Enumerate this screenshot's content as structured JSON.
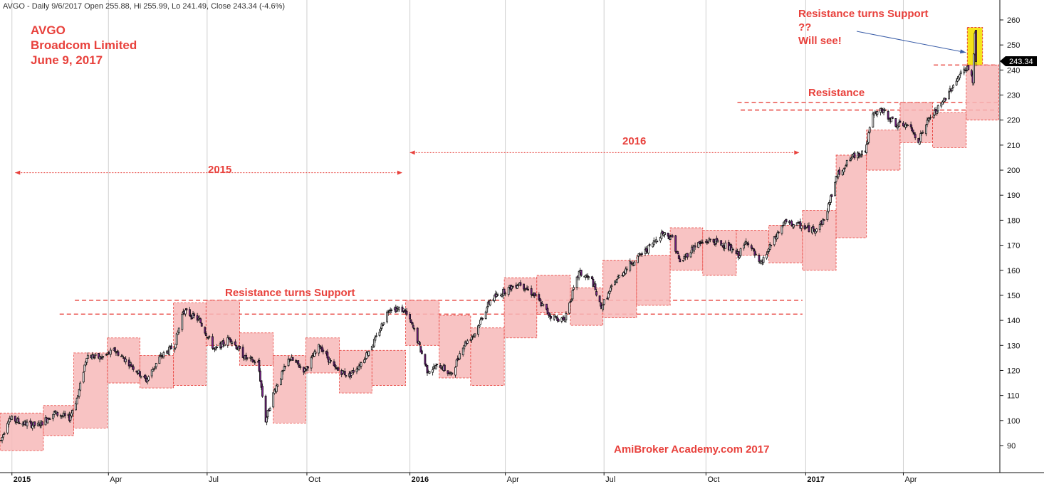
{
  "header_text": "AVGO - Daily 9/6/2017 Open 255.88, Hi 255.99, Lo 241.49, Close 243.34 (-4.6%)",
  "title": {
    "line1": "AVGO",
    "line2": "Broadcom Limited",
    "line3": "June 9, 2017"
  },
  "annotations": {
    "resistance_support_top": "Resistance turns Support",
    "question": "??",
    "will_see": "Will see!",
    "resistance": "Resistance",
    "year_2016": "2016",
    "year_2015": "2015",
    "resistance_support_mid": "Resistance turns Support",
    "watermark": "AmiBroker Academy.com  2017"
  },
  "price_label": "243.34",
  "colors": {
    "annotation": "#e8413c",
    "range_box": "#f7b9b9",
    "candle_up": "#ffffff",
    "candle_down": "#7a1f8a",
    "highlight_box": "#f4e31a",
    "price_tag": "#000000",
    "arrow": "#3b5ea8"
  },
  "chart_data": {
    "type": "candlestick",
    "symbol": "AVGO",
    "timeframe": "Daily",
    "ylim": [
      85,
      262
    ],
    "xlim": [
      "2014-12-22",
      "2017-07-01"
    ],
    "yticks": [
      90,
      100,
      110,
      120,
      130,
      140,
      150,
      160,
      170,
      180,
      190,
      200,
      210,
      220,
      230,
      240,
      250,
      260
    ],
    "xticks": [
      {
        "label": "2015",
        "date": "2015-01-02",
        "bold": true
      },
      {
        "label": "Apr",
        "date": "2015-04-01",
        "bold": false
      },
      {
        "label": "Jul",
        "date": "2015-07-01",
        "bold": false
      },
      {
        "label": "Oct",
        "date": "2015-10-01",
        "bold": false
      },
      {
        "label": "2016",
        "date": "2016-01-04",
        "bold": true
      },
      {
        "label": "Apr",
        "date": "2016-04-01",
        "bold": false
      },
      {
        "label": "Jul",
        "date": "2016-07-01",
        "bold": false
      },
      {
        "label": "Oct",
        "date": "2016-10-03",
        "bold": false
      },
      {
        "label": "2017",
        "date": "2017-01-03",
        "bold": true
      },
      {
        "label": "Apr",
        "date": "2017-04-03",
        "bold": false
      }
    ],
    "last": {
      "open": 255.88,
      "high": 255.99,
      "low": 241.49,
      "close": 243.34
    },
    "price_path": [
      [
        "2014-12-23",
        92
      ],
      [
        "2014-12-30",
        101
      ],
      [
        "2015-01-12",
        99
      ],
      [
        "2015-01-26",
        98
      ],
      [
        "2015-02-10",
        103
      ],
      [
        "2015-02-24",
        101
      ],
      [
        "2015-03-04",
        110
      ],
      [
        "2015-03-12",
        126
      ],
      [
        "2015-03-25",
        125
      ],
      [
        "2015-04-07",
        128
      ],
      [
        "2015-04-20",
        123
      ],
      [
        "2015-05-06",
        116
      ],
      [
        "2015-05-18",
        125
      ],
      [
        "2015-06-01",
        130
      ],
      [
        "2015-06-09",
        144
      ],
      [
        "2015-06-24",
        140
      ],
      [
        "2015-07-08",
        128
      ],
      [
        "2015-07-22",
        133
      ],
      [
        "2015-08-05",
        125
      ],
      [
        "2015-08-17",
        123
      ],
      [
        "2015-08-24",
        100
      ],
      [
        "2015-09-01",
        112
      ],
      [
        "2015-09-15",
        125
      ],
      [
        "2015-09-29",
        120
      ],
      [
        "2015-10-13",
        130
      ],
      [
        "2015-10-26",
        121
      ],
      [
        "2015-11-09",
        118
      ],
      [
        "2015-11-20",
        123
      ],
      [
        "2015-12-04",
        133
      ],
      [
        "2015-12-16",
        145
      ],
      [
        "2015-12-30",
        144
      ],
      [
        "2016-01-08",
        136
      ],
      [
        "2016-01-20",
        120
      ],
      [
        "2016-02-01",
        122
      ],
      [
        "2016-02-11",
        118
      ],
      [
        "2016-02-22",
        130
      ],
      [
        "2016-03-04",
        135
      ],
      [
        "2016-03-18",
        148
      ],
      [
        "2016-04-01",
        152
      ],
      [
        "2016-04-14",
        155
      ],
      [
        "2016-04-28",
        150
      ],
      [
        "2016-05-12",
        142
      ],
      [
        "2016-05-25",
        140
      ],
      [
        "2016-06-08",
        159
      ],
      [
        "2016-06-20",
        156
      ],
      [
        "2016-06-28",
        145
      ],
      [
        "2016-07-12",
        156
      ],
      [
        "2016-07-26",
        163
      ],
      [
        "2016-08-09",
        168
      ],
      [
        "2016-08-24",
        175
      ],
      [
        "2016-09-02",
        173
      ],
      [
        "2016-09-09",
        163
      ],
      [
        "2016-09-23",
        170
      ],
      [
        "2016-10-07",
        172
      ],
      [
        "2016-10-21",
        170
      ],
      [
        "2016-11-02",
        166
      ],
      [
        "2016-11-10",
        172
      ],
      [
        "2016-11-22",
        162
      ],
      [
        "2016-12-02",
        170
      ],
      [
        "2016-12-14",
        179
      ],
      [
        "2016-12-28",
        178
      ],
      [
        "2017-01-10",
        176
      ],
      [
        "2017-01-20",
        180
      ],
      [
        "2017-02-01",
        198
      ],
      [
        "2017-02-14",
        205
      ],
      [
        "2017-02-27",
        208
      ],
      [
        "2017-03-06",
        222
      ],
      [
        "2017-03-14",
        224
      ],
      [
        "2017-03-28",
        218
      ],
      [
        "2017-04-07",
        218
      ],
      [
        "2017-04-17",
        212
      ],
      [
        "2017-04-26",
        220
      ],
      [
        "2017-05-08",
        226
      ],
      [
        "2017-05-16",
        232
      ],
      [
        "2017-05-25",
        238
      ],
      [
        "2017-06-01",
        241
      ],
      [
        "2017-06-06",
        236
      ],
      [
        "2017-06-07",
        246
      ],
      [
        "2017-06-08",
        254
      ],
      [
        "2017-06-09",
        243.34
      ]
    ],
    "range_boxes": [
      {
        "start": "2014-12-22",
        "end": "2015-01-31",
        "low": 88,
        "high": 103
      },
      {
        "start": "2015-01-31",
        "end": "2015-02-28",
        "low": 94,
        "high": 106
      },
      {
        "start": "2015-02-28",
        "end": "2015-03-31",
        "low": 97,
        "high": 127
      },
      {
        "start": "2015-03-31",
        "end": "2015-04-30",
        "low": 115,
        "high": 133
      },
      {
        "start": "2015-04-30",
        "end": "2015-05-31",
        "low": 113,
        "high": 126
      },
      {
        "start": "2015-05-31",
        "end": "2015-06-30",
        "low": 114,
        "high": 147
      },
      {
        "start": "2015-06-30",
        "end": "2015-07-31",
        "low": 130,
        "high": 148
      },
      {
        "start": "2015-07-31",
        "end": "2015-08-31",
        "low": 122,
        "high": 135
      },
      {
        "start": "2015-08-31",
        "end": "2015-09-30",
        "low": 99,
        "high": 126
      },
      {
        "start": "2015-09-30",
        "end": "2015-10-31",
        "low": 119,
        "high": 133
      },
      {
        "start": "2015-10-31",
        "end": "2015-11-30",
        "low": 111,
        "high": 128
      },
      {
        "start": "2015-11-30",
        "end": "2015-12-31",
        "low": 114,
        "high": 128
      },
      {
        "start": "2015-12-31",
        "end": "2016-01-31",
        "low": 130,
        "high": 148
      },
      {
        "start": "2016-01-31",
        "end": "2016-02-29",
        "low": 117,
        "high": 142
      },
      {
        "start": "2016-02-29",
        "end": "2016-03-31",
        "low": 114,
        "high": 137
      },
      {
        "start": "2016-03-31",
        "end": "2016-04-30",
        "low": 133,
        "high": 157
      },
      {
        "start": "2016-04-30",
        "end": "2016-05-31",
        "low": 143,
        "high": 158
      },
      {
        "start": "2016-05-31",
        "end": "2016-06-30",
        "low": 138,
        "high": 153
      },
      {
        "start": "2016-06-30",
        "end": "2016-07-31",
        "low": 141,
        "high": 164
      },
      {
        "start": "2016-07-31",
        "end": "2016-08-31",
        "low": 146,
        "high": 166
      },
      {
        "start": "2016-08-31",
        "end": "2016-09-30",
        "low": 160,
        "high": 177
      },
      {
        "start": "2016-09-30",
        "end": "2016-10-31",
        "low": 158,
        "high": 176
      },
      {
        "start": "2016-10-31",
        "end": "2016-11-30",
        "low": 166,
        "high": 176
      },
      {
        "start": "2016-11-30",
        "end": "2016-12-31",
        "low": 163,
        "high": 178
      },
      {
        "start": "2016-12-31",
        "end": "2017-01-31",
        "low": 160,
        "high": 184
      },
      {
        "start": "2017-01-31",
        "end": "2017-02-28",
        "low": 173,
        "high": 206
      },
      {
        "start": "2017-02-28",
        "end": "2017-03-31",
        "low": 200,
        "high": 216
      },
      {
        "start": "2017-03-31",
        "end": "2017-04-30",
        "low": 211,
        "high": 227
      },
      {
        "start": "2017-04-30",
        "end": "2017-05-31",
        "low": 209,
        "high": 223
      },
      {
        "start": "2017-05-31",
        "end": "2017-06-30",
        "low": 220,
        "high": 242
      }
    ],
    "highlight_box": {
      "start": "2017-06-01",
      "end": "2017-06-15",
      "low": 242,
      "high": 257
    },
    "horizontal_levels": [
      {
        "y": 148,
        "start": "2015-03-01",
        "end": "2016-12-31"
      },
      {
        "y": 142.5,
        "start": "2015-02-15",
        "end": "2016-12-31"
      },
      {
        "y": 227,
        "start": "2016-11-01",
        "end": "2017-06-30"
      },
      {
        "y": 224,
        "start": "2016-11-04",
        "end": "2017-06-30"
      },
      {
        "y": 242,
        "start": "2017-05-01",
        "end": "2017-06-30"
      }
    ],
    "range_arrows": [
      {
        "y": 199,
        "start": "2015-01-05",
        "end": "2015-12-28"
      },
      {
        "y": 207,
        "start": "2016-01-04",
        "end": "2016-12-28"
      }
    ]
  }
}
